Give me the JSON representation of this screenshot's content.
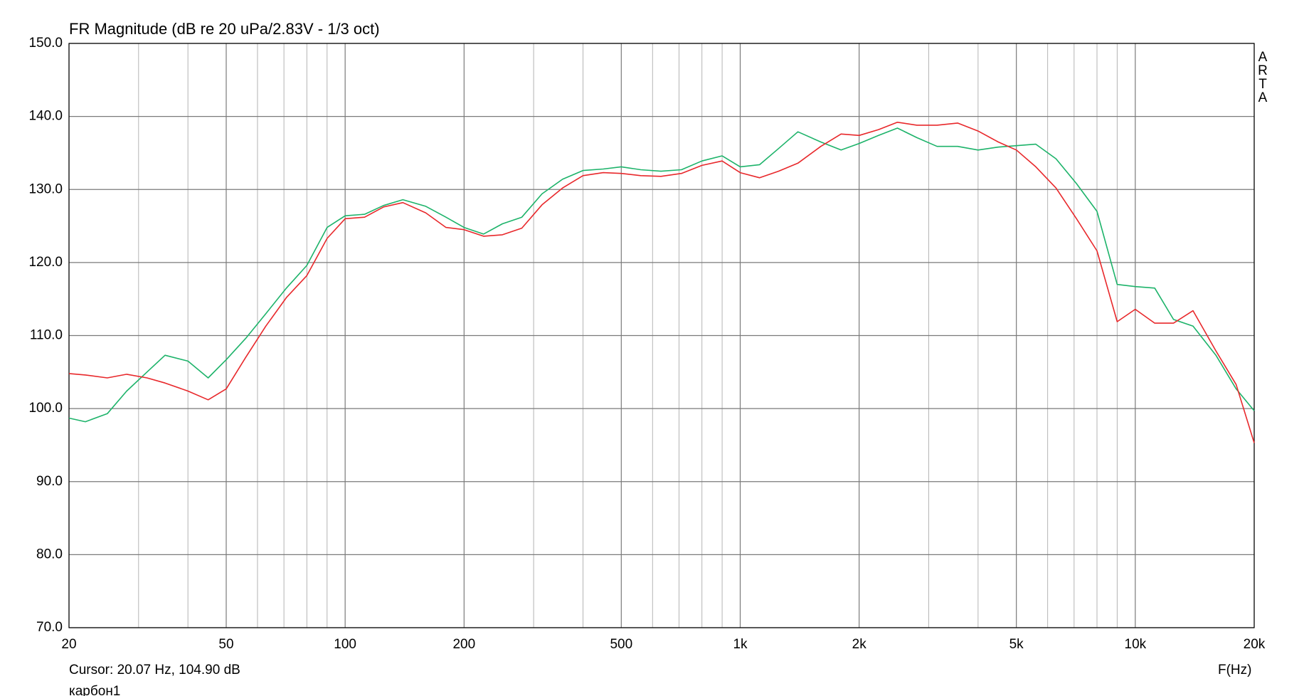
{
  "chart_data": {
    "type": "line",
    "title": "FR Magnitude (dB re 20 uPa/2.83V - 1/3 oct)",
    "x_label": "F(Hz)",
    "cursor": "Cursor: 20.07 Hz, 104.90 dB",
    "footer": "карбон1",
    "watermark": "ARTA",
    "log_x": true,
    "grid": true,
    "xlim": [
      20,
      20000
    ],
    "ylim": [
      70,
      150
    ],
    "xticks": [
      20,
      50,
      100,
      200,
      500,
      {
        "value": 1000,
        "label": "1k"
      },
      {
        "value": 2000,
        "label": "2k"
      },
      {
        "value": 5000,
        "label": "5k"
      },
      {
        "value": 10000,
        "label": "10k"
      },
      {
        "value": 20000,
        "label": "20k"
      }
    ],
    "xminor": [
      30,
      40,
      60,
      70,
      80,
      90,
      300,
      400,
      600,
      700,
      800,
      900,
      3000,
      4000,
      6000,
      7000,
      8000,
      9000
    ],
    "yticks": [
      {
        "value": 70,
        "label": "70.0"
      },
      {
        "value": 80,
        "label": "80.0"
      },
      {
        "value": 90,
        "label": "90.0"
      },
      {
        "value": 100,
        "label": "100.0"
      },
      {
        "value": 110,
        "label": "110.0"
      },
      {
        "value": 120,
        "label": "120.0"
      },
      {
        "value": 130,
        "label": "130.0"
      },
      {
        "value": 140,
        "label": "140.0"
      },
      {
        "value": 150,
        "label": "150.0"
      }
    ],
    "x": [
      20,
      22,
      25,
      28,
      31.5,
      35,
      40,
      45,
      50,
      56,
      63,
      71,
      80,
      90,
      100,
      112,
      125,
      140,
      160,
      180,
      200,
      224,
      250,
      280,
      315,
      355,
      400,
      450,
      500,
      560,
      630,
      710,
      800,
      900,
      1000,
      1120,
      1250,
      1400,
      1600,
      1800,
      2000,
      2240,
      2500,
      2800,
      3150,
      3550,
      4000,
      4500,
      5000,
      5600,
      6300,
      7100,
      8000,
      9000,
      10000,
      11200,
      12500,
      14000,
      16000,
      18000,
      20000
    ],
    "series": [
      {
        "color": "#1db36a",
        "values": [
          98.7,
          98.2,
          99.3,
          102.4,
          105,
          107.3,
          106.5,
          104.2,
          106.7,
          109.6,
          113,
          116.5,
          119.6,
          124.8,
          126.4,
          126.6,
          127.8,
          128.6,
          127.7,
          126.2,
          124.8,
          123.9,
          125.3,
          126.2,
          129.4,
          131.4,
          132.6,
          132.8,
          133.1,
          132.7,
          132.5,
          132.7,
          133.9,
          134.6,
          133.1,
          133.4,
          135.6,
          137.9,
          136.5,
          135.4,
          136.3,
          137.4,
          138.4,
          137.1,
          135.9,
          135.9,
          135.4,
          135.8,
          136.0,
          136.2,
          134.2,
          130.8,
          127.0,
          117.0,
          116.7,
          116.5,
          112.2,
          111.3,
          107.3,
          102.7,
          99.7
        ]
      },
      {
        "color": "#e8282b",
        "values": [
          104.8,
          104.6,
          104.2,
          104.7,
          104.2,
          103.5,
          102.4,
          101.2,
          102.7,
          107.0,
          111.3,
          115.2,
          118.2,
          123.3,
          126.0,
          126.2,
          127.6,
          128.2,
          126.8,
          124.8,
          124.5,
          123.6,
          123.8,
          124.7,
          127.9,
          130.2,
          131.9,
          132.3,
          132.2,
          131.9,
          131.8,
          132.2,
          133.3,
          133.9,
          132.3,
          131.6,
          132.5,
          133.6,
          135.9,
          137.6,
          137.4,
          138.2,
          139.2,
          138.8,
          138.8,
          139.1,
          138.0,
          136.5,
          135.4,
          133.1,
          130.2,
          126.0,
          121.6,
          111.9,
          113.6,
          111.7,
          111.7,
          113.4,
          107.9,
          103.3,
          95.3
        ]
      }
    ]
  }
}
